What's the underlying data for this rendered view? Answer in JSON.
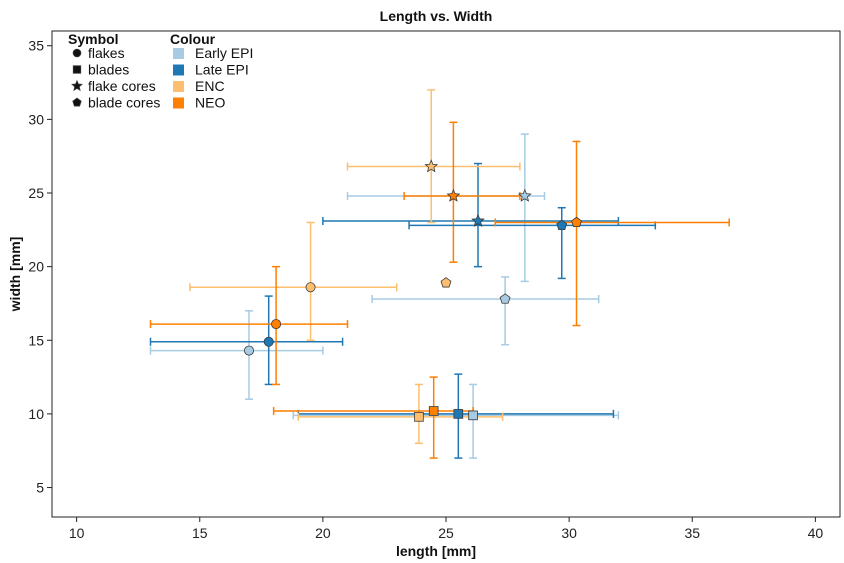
{
  "chart_data": {
    "type": "scatter",
    "title": "Length vs. Width",
    "xlabel": "length [mm]",
    "ylabel": "width [mm]",
    "xlim": [
      9,
      41
    ],
    "ylim": [
      3,
      36
    ],
    "xticks": [
      10,
      15,
      20,
      25,
      30,
      35,
      40
    ],
    "yticks": [
      5,
      10,
      15,
      20,
      25,
      30,
      35
    ],
    "grid": false,
    "legend_placement": "top-left",
    "legend": {
      "symbol_title": "Symbol",
      "colour_title": "Colour",
      "symbols": [
        {
          "label": "flakes",
          "shape": "circle"
        },
        {
          "label": "blades",
          "shape": "square"
        },
        {
          "label": "flake cores",
          "shape": "star"
        },
        {
          "label": "blade cores",
          "shape": "pentagon"
        }
      ],
      "colours": [
        {
          "label": "Early EPI",
          "color": "#a6cbe3"
        },
        {
          "label": "Late EPI",
          "color": "#1f78b4"
        },
        {
          "label": "ENC",
          "color": "#fdbf6f"
        },
        {
          "label": "NEO",
          "color": "#ff7f00"
        }
      ]
    },
    "points": [
      {
        "symbol": "flakes",
        "group": "Early EPI",
        "x": 17.0,
        "y": 14.3,
        "xerr": [
          13.0,
          20.0
        ],
        "yerr": [
          11.0,
          17.0
        ]
      },
      {
        "symbol": "flakes",
        "group": "Late EPI",
        "x": 17.8,
        "y": 14.9,
        "xerr": [
          13.0,
          20.8
        ],
        "yerr": [
          12.0,
          18.0
        ]
      },
      {
        "symbol": "flakes",
        "group": "ENC",
        "x": 19.5,
        "y": 18.6,
        "xerr": [
          14.6,
          23.0
        ],
        "yerr": [
          15.0,
          23.0
        ]
      },
      {
        "symbol": "flakes",
        "group": "NEO",
        "x": 18.1,
        "y": 16.1,
        "xerr": [
          13.0,
          21.0
        ],
        "yerr": [
          12.0,
          20.0
        ]
      },
      {
        "symbol": "blades",
        "group": "Early EPI",
        "x": 26.1,
        "y": 9.9,
        "xerr": [
          18.8,
          32.0
        ],
        "yerr": [
          7.0,
          12.0
        ]
      },
      {
        "symbol": "blades",
        "group": "Late EPI",
        "x": 25.5,
        "y": 10.0,
        "xerr": [
          19.0,
          31.8
        ],
        "yerr": [
          7.0,
          12.7
        ]
      },
      {
        "symbol": "blades",
        "group": "ENC",
        "x": 23.9,
        "y": 9.8,
        "xerr": [
          19.0,
          27.3
        ],
        "yerr": [
          8.0,
          12.0
        ]
      },
      {
        "symbol": "blades",
        "group": "NEO",
        "x": 24.5,
        "y": 10.2,
        "xerr": [
          18.0,
          26.1
        ],
        "yerr": [
          7.0,
          12.5
        ]
      },
      {
        "symbol": "flake cores",
        "group": "Early EPI",
        "x": 28.2,
        "y": 24.8,
        "xerr": [
          21.0,
          29.0
        ],
        "yerr": [
          19.0,
          29.0
        ]
      },
      {
        "symbol": "flake cores",
        "group": "Late EPI",
        "x": 26.3,
        "y": 23.1,
        "xerr": [
          20.0,
          32.0
        ],
        "yerr": [
          20.0,
          27.0
        ]
      },
      {
        "symbol": "flake cores",
        "group": "ENC",
        "x": 24.4,
        "y": 26.8,
        "xerr": [
          21.0,
          28.0
        ],
        "yerr": [
          23.0,
          32.0
        ]
      },
      {
        "symbol": "flake cores",
        "group": "NEO",
        "x": 25.3,
        "y": 24.8,
        "xerr": [
          23.3,
          28.0
        ],
        "yerr": [
          20.3,
          29.8
        ]
      },
      {
        "symbol": "blade cores",
        "group": "Early EPI",
        "x": 27.4,
        "y": 17.8,
        "xerr": [
          22.0,
          31.2
        ],
        "yerr": [
          14.7,
          19.3
        ]
      },
      {
        "symbol": "blade cores",
        "group": "Late EPI",
        "x": 29.7,
        "y": 22.8,
        "xerr": [
          23.5,
          33.5
        ],
        "yerr": [
          19.2,
          24.0
        ]
      },
      {
        "symbol": "blade cores",
        "group": "ENC",
        "x": 25.0,
        "y": 18.9,
        "xerr": null,
        "yerr": null
      },
      {
        "symbol": "blade cores",
        "group": "NEO",
        "x": 30.3,
        "y": 23.0,
        "xerr": [
          27.0,
          36.5
        ],
        "yerr": [
          16.0,
          28.5
        ]
      }
    ]
  }
}
